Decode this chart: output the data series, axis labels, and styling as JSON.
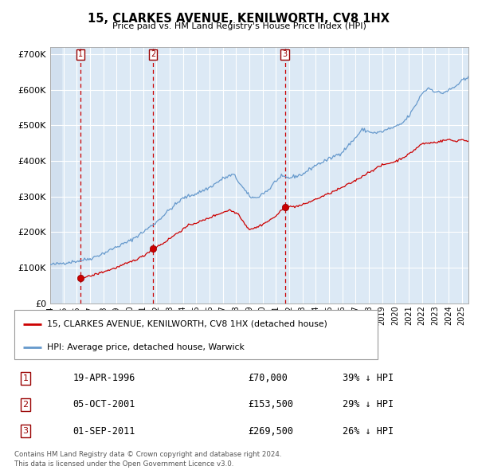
{
  "title": "15, CLARKES AVENUE, KENILWORTH, CV8 1HX",
  "subtitle": "Price paid vs. HM Land Registry's House Price Index (HPI)",
  "legend_property": "15, CLARKES AVENUE, KENILWORTH, CV8 1HX (detached house)",
  "legend_hpi": "HPI: Average price, detached house, Warwick",
  "footer": "Contains HM Land Registry data © Crown copyright and database right 2024.\nThis data is licensed under the Open Government Licence v3.0.",
  "transactions": [
    {
      "num": 1,
      "date": "19-APR-1996",
      "year": 1996.29,
      "price": 70000,
      "hpi_pct": "39% ↓ HPI"
    },
    {
      "num": 2,
      "date": "05-OCT-2001",
      "year": 2001.75,
      "price": 153500,
      "hpi_pct": "29% ↓ HPI"
    },
    {
      "num": 3,
      "date": "01-SEP-2011",
      "year": 2011.67,
      "price": 269500,
      "hpi_pct": "26% ↓ HPI"
    }
  ],
  "ylim": [
    0,
    720000
  ],
  "xlim_start": 1994.0,
  "xlim_end": 2025.5,
  "bg_color": "#dce9f5",
  "hatch_color": "#c8d8ea",
  "grid_color": "#ffffff",
  "red_line_color": "#cc0000",
  "blue_line_color": "#6699cc",
  "dashed_line_color": "#cc0000"
}
